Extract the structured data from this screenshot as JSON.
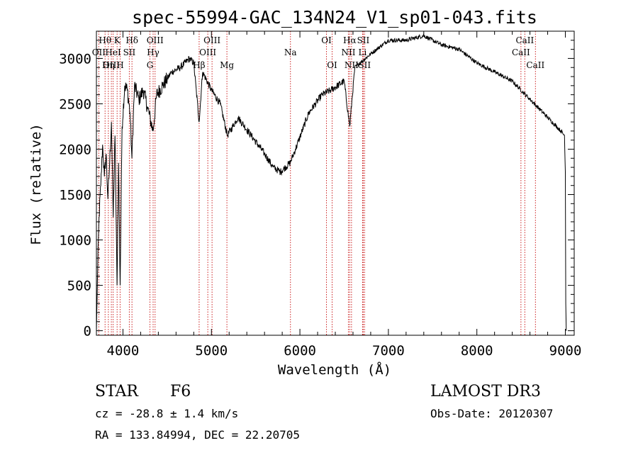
{
  "chart_data": {
    "type": "line",
    "title": "spec-55994-GAC_134N24_V1_sp01-043.fits",
    "xlabel": "Wavelength (Å)",
    "ylabel": "Flux (relative)",
    "xlim": [
      3700,
      9100
    ],
    "ylim": [
      -50,
      3300
    ],
    "x_ticks": [
      4000,
      5000,
      6000,
      7000,
      8000,
      9000
    ],
    "y_ticks": [
      0,
      500,
      1000,
      1500,
      2000,
      2500,
      3000
    ],
    "series": [
      {
        "name": "spectrum",
        "anchors": [
          [
            3700,
            0
          ],
          [
            3715,
            700
          ],
          [
            3730,
            1250
          ],
          [
            3750,
            1600
          ],
          [
            3770,
            2050
          ],
          [
            3790,
            1700
          ],
          [
            3810,
            1950
          ],
          [
            3830,
            1450
          ],
          [
            3850,
            1850
          ],
          [
            3870,
            2300
          ],
          [
            3890,
            1250
          ],
          [
            3910,
            2150
          ],
          [
            3933,
            500
          ],
          [
            3950,
            1850
          ],
          [
            3968,
            500
          ],
          [
            3990,
            2250
          ],
          [
            4020,
            2700
          ],
          [
            4050,
            2650
          ],
          [
            4080,
            2400
          ],
          [
            4101,
            1900
          ],
          [
            4130,
            2700
          ],
          [
            4180,
            2550
          ],
          [
            4230,
            2650
          ],
          [
            4280,
            2450
          ],
          [
            4340,
            2200
          ],
          [
            4380,
            2600
          ],
          [
            4450,
            2700
          ],
          [
            4550,
            2850
          ],
          [
            4650,
            2900
          ],
          [
            4750,
            3000
          ],
          [
            4800,
            2950
          ],
          [
            4861,
            2300
          ],
          [
            4900,
            2850
          ],
          [
            5000,
            2650
          ],
          [
            5100,
            2500
          ],
          [
            5180,
            2150
          ],
          [
            5300,
            2350
          ],
          [
            5450,
            2150
          ],
          [
            5600,
            1950
          ],
          [
            5700,
            1800
          ],
          [
            5780,
            1750
          ],
          [
            5890,
            1850
          ],
          [
            5950,
            2000
          ],
          [
            6100,
            2400
          ],
          [
            6250,
            2600
          ],
          [
            6350,
            2650
          ],
          [
            6500,
            2750
          ],
          [
            6563,
            2250
          ],
          [
            6620,
            2900
          ],
          [
            6800,
            3050
          ],
          [
            7000,
            3200
          ],
          [
            7200,
            3200
          ],
          [
            7400,
            3250
          ],
          [
            7600,
            3150
          ],
          [
            7800,
            3100
          ],
          [
            8000,
            2950
          ],
          [
            8200,
            2850
          ],
          [
            8400,
            2750
          ],
          [
            8600,
            2550
          ],
          [
            8800,
            2350
          ],
          [
            8950,
            2200
          ],
          [
            8990,
            2150
          ],
          [
            9000,
            1750
          ],
          [
            9005,
            300
          ],
          [
            9010,
            0
          ]
        ]
      }
    ],
    "spectral_lines": [
      {
        "label": "Hθ",
        "x": 3798,
        "row": 0
      },
      {
        "label": "OII",
        "x": 3727,
        "row": 1
      },
      {
        "label": "OIII",
        "x": 3869,
        "row": 2
      },
      {
        "label": "K",
        "x": 3934,
        "row": 0
      },
      {
        "label": "HeI",
        "x": 3889,
        "row": 1
      },
      {
        "label": "Hη",
        "x": 3835,
        "row": 2
      },
      {
        "label": "Hδ",
        "x": 4102,
        "row": 0
      },
      {
        "label": "SII",
        "x": 4072,
        "row": 1
      },
      {
        "label": "H",
        "x": 3968,
        "row": 2
      },
      {
        "label": "OIII",
        "x": 4363,
        "row": 0
      },
      {
        "label": "Hγ",
        "x": 4341,
        "row": 1
      },
      {
        "label": "G",
        "x": 4305,
        "row": 2
      },
      {
        "label": "OIII",
        "x": 5007,
        "row": 0
      },
      {
        "label": "OIII",
        "x": 4959,
        "row": 1
      },
      {
        "label": "Hβ",
        "x": 4861,
        "row": 2
      },
      {
        "label": "Mg",
        "x": 5175,
        "row": 2
      },
      {
        "label": "Na",
        "x": 5893,
        "row": 1
      },
      {
        "label": "OI",
        "x": 6300,
        "row": 0
      },
      {
        "label": "OI",
        "x": 6364,
        "row": 2
      },
      {
        "label": "Hα",
        "x": 6563,
        "row": 0
      },
      {
        "label": "NII",
        "x": 6548,
        "row": 1
      },
      {
        "label": "NII",
        "x": 6583,
        "row": 2
      },
      {
        "label": "SII",
        "x": 6716,
        "row": 0
      },
      {
        "label": "Li",
        "x": 6708,
        "row": 1
      },
      {
        "label": "SII",
        "x": 6731,
        "row": 2
      },
      {
        "label": "CaII",
        "x": 8542,
        "row": 0
      },
      {
        "label": "CaII",
        "x": 8498,
        "row": 1
      },
      {
        "label": "CaII",
        "x": 8662,
        "row": 2
      }
    ],
    "grid": false,
    "legend": "none",
    "line_color": "#000000",
    "marker_color": "#cc2222"
  },
  "info": {
    "object_class": "STAR",
    "subclass": "F6",
    "redshift": "cz = -28.8 ± 1.4 km/s",
    "coords": "RA = 133.84994, DEC =  22.20705",
    "survey": "LAMOST DR3",
    "obs_date": "Obs-Date: 20120307"
  }
}
